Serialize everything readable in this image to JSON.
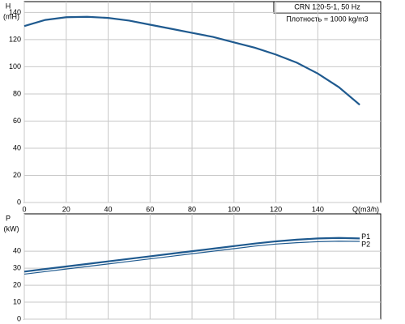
{
  "chart_data": [
    {
      "type": "line",
      "title": "CRN 120-5-1, 50 Hz",
      "subtitle": "Плотность = 1000 kg/m3",
      "ylabel": "H",
      "yunit": "(mH)",
      "xlabel": "Q(m3/h)",
      "x": [
        0,
        10,
        20,
        30,
        40,
        50,
        60,
        70,
        80,
        90,
        100,
        110,
        120,
        130,
        140,
        150,
        160
      ],
      "series": [
        {
          "name": null,
          "color": "#1f5a8f",
          "values": [
            130,
            134.5,
            136.5,
            136.8,
            136,
            134,
            131,
            128,
            125,
            122,
            118,
            114,
            109,
            103,
            95,
            85,
            72
          ]
        }
      ],
      "xlim": [
        0,
        170
      ],
      "xticks": [
        0,
        20,
        40,
        60,
        80,
        100,
        120,
        140
      ],
      "ylim": [
        0,
        148
      ],
      "yticks": [
        0,
        20,
        40,
        60,
        80,
        100,
        120,
        140
      ],
      "grid": true
    },
    {
      "type": "line",
      "ylabel": "P",
      "yunit": "(kW)",
      "x": [
        0,
        10,
        20,
        30,
        40,
        50,
        60,
        70,
        80,
        90,
        100,
        110,
        120,
        130,
        140,
        150,
        160
      ],
      "series": [
        {
          "name": "P1",
          "color": "#1f5a8f",
          "values": [
            28,
            29.5,
            31,
            32.5,
            34,
            35.5,
            37,
            38.5,
            40,
            41.5,
            43,
            44.5,
            45.8,
            46.8,
            47.5,
            47.8,
            47.5
          ]
        },
        {
          "name": "P2",
          "color": "#1f5a8f",
          "values": [
            26.5,
            28,
            29.5,
            31,
            32.5,
            34,
            35.5,
            37,
            38.5,
            40,
            41.5,
            43,
            44.2,
            45,
            45.6,
            45.9,
            45.8
          ]
        }
      ],
      "xlim": [
        0,
        170
      ],
      "ylim": [
        0,
        62
      ],
      "yticks": [
        0,
        10,
        20,
        30,
        40
      ],
      "grid": true
    }
  ]
}
